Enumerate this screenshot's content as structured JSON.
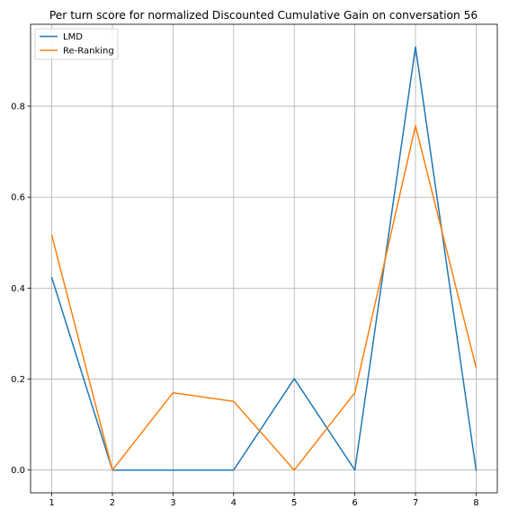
{
  "chart_data": {
    "type": "line",
    "title": "Per turn score for normalized Discounted Cumulative Gain on conversation 56",
    "xlabel": "",
    "ylabel": "",
    "x": [
      1,
      2,
      3,
      4,
      5,
      6,
      7,
      8
    ],
    "xticks": [
      "1",
      "2",
      "3",
      "4",
      "5",
      "6",
      "7",
      "8"
    ],
    "yticks": [
      "0.0",
      "0.2",
      "0.4",
      "0.6",
      "0.8"
    ],
    "xlim": [
      0.65,
      8.35
    ],
    "ylim": [
      -0.05,
      0.98
    ],
    "grid": true,
    "legend_position": "upper-left",
    "series": [
      {
        "name": "LMD",
        "color": "#1f77b4",
        "values": [
          0.423,
          0.0,
          0.0,
          0.0,
          0.201,
          0.0,
          0.93,
          0.0
        ]
      },
      {
        "name": "Re-Ranking",
        "color": "#ff7f0e",
        "values": [
          0.516,
          0.0,
          0.17,
          0.151,
          0.0,
          0.17,
          0.757,
          0.225
        ]
      }
    ]
  }
}
